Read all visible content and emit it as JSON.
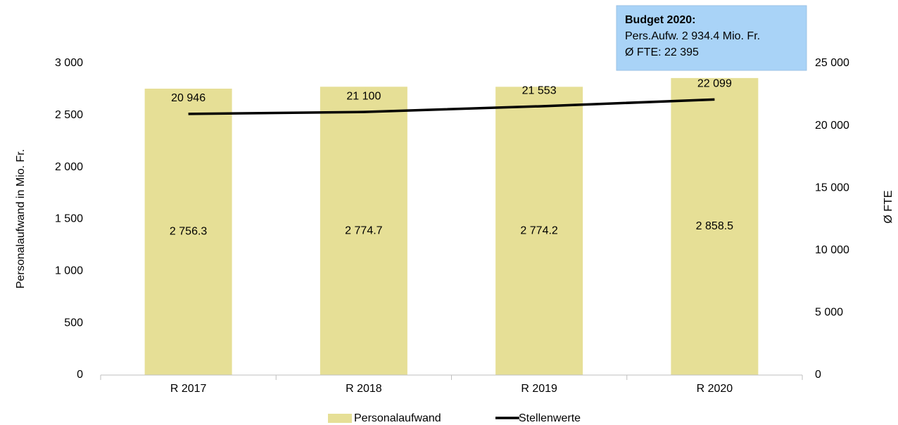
{
  "chart_data": {
    "type": "combo",
    "categories": [
      "R 2017",
      "R 2018",
      "R 2019",
      "R 2020"
    ],
    "series": [
      {
        "name": "Personalaufwand",
        "type": "bar",
        "color": "#e6df96",
        "values": [
          2756.3,
          2774.7,
          2774.2,
          2858.5
        ],
        "value_labels": [
          "2 756.3",
          "2 774.7",
          "2 774.2",
          "2 858.5"
        ]
      },
      {
        "name": "Stellenwerte",
        "type": "line",
        "axis": "y2",
        "color": "#000000",
        "values": [
          20946,
          21100,
          21553,
          22099
        ],
        "value_labels": [
          "20 946",
          "21 100",
          "21 553",
          "22 099"
        ]
      }
    ],
    "ylabel": "Personalaufwand in Mio. Fr.",
    "y2label": "Ø FTE",
    "ylim": [
      0,
      3000
    ],
    "yticks": [
      0,
      500,
      {
        "value": 1000,
        "label": "1 000"
      },
      {
        "value": 1500,
        "label": "1 500"
      },
      {
        "value": 2000,
        "label": "2 000"
      },
      {
        "value": 2500,
        "label": "2 500"
      },
      {
        "value": 3000,
        "label": "3 000"
      }
    ],
    "y2lim": [
      0,
      25000
    ],
    "y2ticks": [
      0,
      {
        "value": 5000,
        "label": "5 000"
      },
      {
        "value": 10000,
        "label": "10 000"
      },
      {
        "value": 15000,
        "label": "15 000"
      },
      {
        "value": 20000,
        "label": "20 000"
      },
      {
        "value": 25000,
        "label": "25 000"
      }
    ],
    "annotation": {
      "title": "Budget 2020:",
      "lines": [
        "Pers.Aufw. 2 934.4 Mio. Fr.",
        "Ø FTE: 22 395"
      ],
      "color": "#a9d3f7"
    },
    "legend": "bottom"
  }
}
